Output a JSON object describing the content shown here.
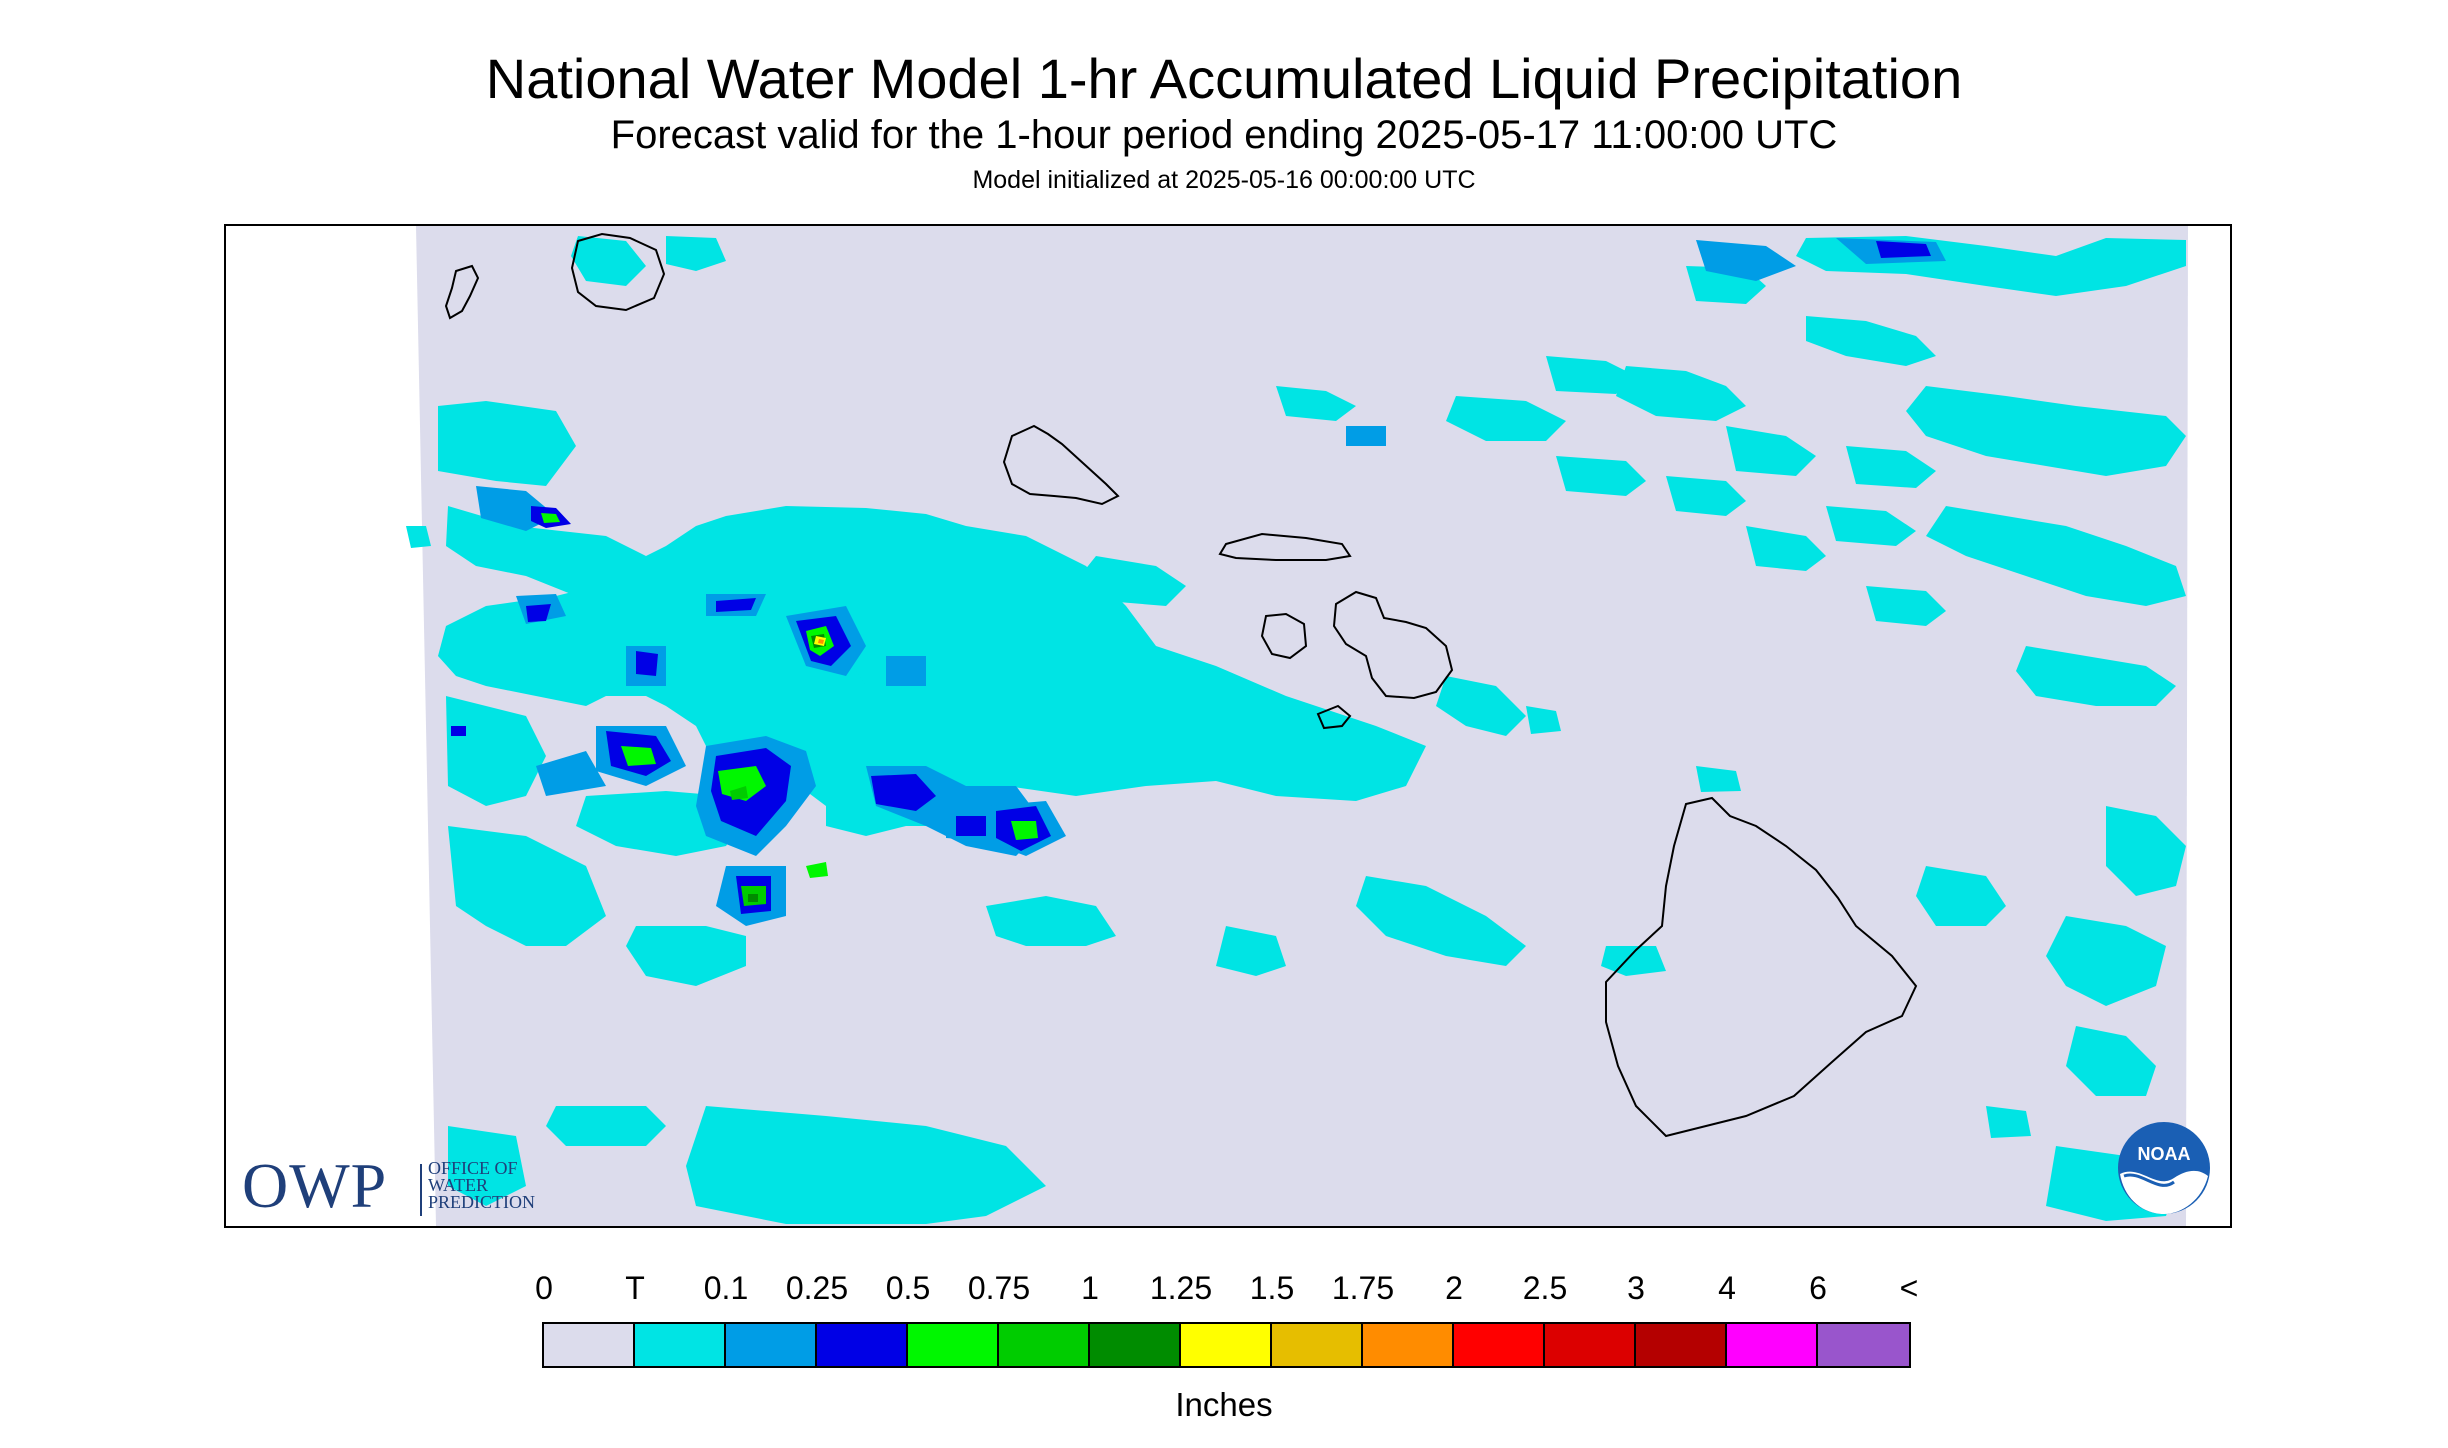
{
  "header": {
    "title": "National Water Model 1-hr Accumulated Liquid Precipitation",
    "subtitle": "Forecast valid for the 1-hour period ending 2025-05-17 11:00:00 UTC",
    "init": "Model initialized at 2025-05-16 00:00:00 UTC"
  },
  "map": {
    "background_color": "#dcdcec",
    "outline_color": "#000000",
    "islands": [
      "Niihau",
      "Kauai",
      "Oahu",
      "Molokai",
      "Lanai",
      "Maui",
      "Kahoolawe",
      "Hawaii"
    ]
  },
  "logos": {
    "owp": {
      "letters": "OWP",
      "line1": "OFFICE OF",
      "line2": "WATER",
      "line3": "PREDICTION"
    },
    "noaa": {
      "text": "NOAA"
    }
  },
  "legend": {
    "labels": [
      "0",
      "T",
      "0.1",
      "0.25",
      "0.5",
      "0.75",
      "1",
      "1.25",
      "1.5",
      "1.75",
      "2",
      "2.5",
      "3",
      "4",
      "6",
      "<"
    ],
    "colors": [
      "#dcdcec",
      "#00e4e4",
      "#009de6",
      "#0000e6",
      "#00f700",
      "#00cc00",
      "#008c00",
      "#ffff00",
      "#e6be00",
      "#ff8c00",
      "#ff0000",
      "#dc0000",
      "#b40000",
      "#ff00ff",
      "#9955cc"
    ],
    "units": "Inches"
  }
}
